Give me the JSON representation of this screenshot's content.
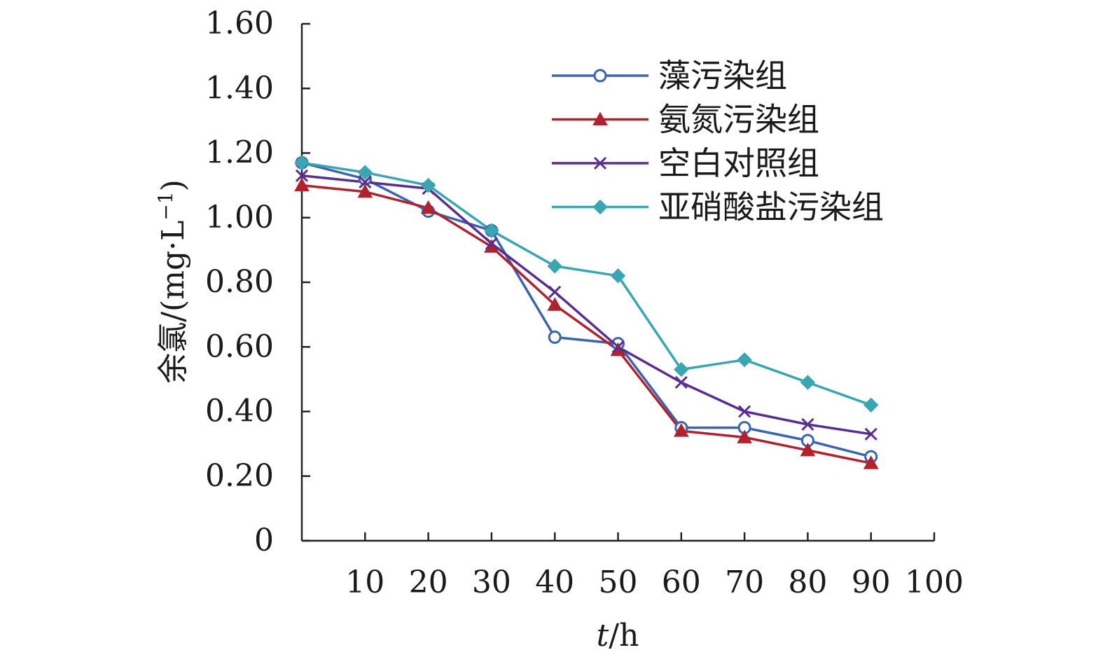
{
  "chart_data": {
    "type": "line",
    "title": "",
    "xlabel": {
      "var": "t",
      "unit": "/h"
    },
    "ylabel": {
      "main": "余氯/(mg·L",
      "sup": "−1",
      "close": ")"
    },
    "xlim": [
      0,
      100
    ],
    "ylim": [
      0,
      1.6
    ],
    "x_ticks": [
      10,
      20,
      30,
      40,
      50,
      60,
      70,
      80,
      90,
      100
    ],
    "x_tick_labels": [
      "10",
      "20",
      "30",
      "40",
      "50",
      "60",
      "70",
      "80",
      "90",
      "100"
    ],
    "y_ticks": [
      0,
      0.2,
      0.4,
      0.6,
      0.8,
      1.0,
      1.2,
      1.4,
      1.6
    ],
    "y_tick_labels": [
      "0",
      "0.20",
      "0.40",
      "0.60",
      "0.80",
      "1.00",
      "1.20",
      "1.40",
      "1.60"
    ],
    "grid": false,
    "legend_position": "top-right",
    "x": [
      0,
      10,
      20,
      30,
      40,
      50,
      60,
      70,
      80,
      90
    ],
    "series": [
      {
        "name": "藻污染组",
        "color": "#3a64b0",
        "marker": "circle",
        "values": [
          1.17,
          1.12,
          1.02,
          0.96,
          0.63,
          0.61,
          0.35,
          0.35,
          0.31,
          0.26
        ]
      },
      {
        "name": "氨氮污染组",
        "color": "#b0222e",
        "marker": "triangle",
        "values": [
          1.1,
          1.08,
          1.03,
          0.91,
          0.73,
          0.59,
          0.34,
          0.32,
          0.28,
          0.24
        ]
      },
      {
        "name": "空白对照组",
        "color": "#5a2d91",
        "marker": "cross",
        "values": [
          1.13,
          1.11,
          1.09,
          0.92,
          0.77,
          0.6,
          0.49,
          0.4,
          0.36,
          0.33
        ]
      },
      {
        "name": "亚硝酸盐污染组",
        "color": "#3aa6b4",
        "marker": "diamond",
        "values": [
          1.17,
          1.14,
          1.1,
          0.96,
          0.85,
          0.82,
          0.53,
          0.56,
          0.49,
          0.42
        ]
      }
    ]
  }
}
